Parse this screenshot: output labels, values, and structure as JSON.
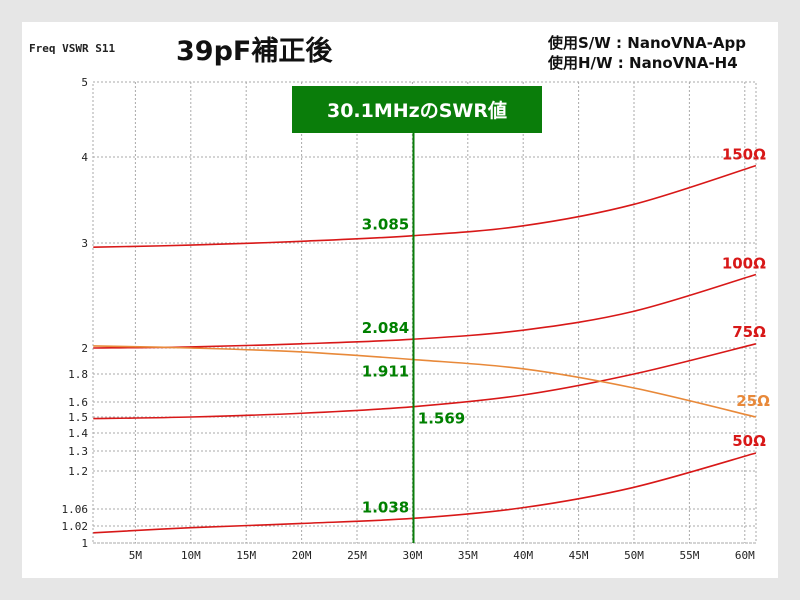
{
  "header": {
    "axis_caption": "Freq VSWR S11",
    "title": "39pF補正後",
    "software": "使用S/W : NanoVNA-App",
    "hardware": "使用H/W : NanoVNA-H4"
  },
  "banner": {
    "label": "30.1MHzのSWR値",
    "color": "#0a7d0a"
  },
  "chart_data": {
    "type": "line",
    "title": "39pF補正後",
    "xlabel": "Freq",
    "ylabel": "VSWR S11",
    "xlim": [
      1.2,
      61
    ],
    "ylim": [
      1,
      5
    ],
    "grid": true,
    "x_ticks": [
      5,
      10,
      15,
      20,
      25,
      30,
      35,
      40,
      45,
      50,
      55,
      60
    ],
    "x_tick_labels": [
      "5M",
      "10M",
      "15M",
      "20M",
      "25M",
      "30M",
      "35M",
      "40M",
      "45M",
      "50M",
      "55M",
      "60M"
    ],
    "y_ticks": [
      1,
      1.02,
      1.06,
      1.2,
      1.3,
      1.4,
      1.5,
      1.6,
      1.8,
      2,
      3,
      4,
      5
    ],
    "y_tick_labels": [
      "1",
      "1.02",
      "1.06",
      "1.2",
      "1.3",
      "1.4",
      "1.5",
      "1.6",
      "1.8",
      "2",
      "3",
      "4",
      "5"
    ],
    "x": [
      1.2,
      10,
      20,
      30.1,
      40,
      50,
      61
    ],
    "series": [
      {
        "name": "150Ω",
        "color": "#d81818",
        "values": [
          2.96,
          2.98,
          3.02,
          3.085,
          3.2,
          3.45,
          3.9
        ]
      },
      {
        "name": "100Ω",
        "color": "#d81818",
        "values": [
          2.0,
          2.01,
          2.04,
          2.084,
          2.17,
          2.35,
          2.7
        ]
      },
      {
        "name": "75Ω",
        "color": "#d81818",
        "values": [
          1.49,
          1.5,
          1.525,
          1.569,
          1.65,
          1.8,
          2.04
        ]
      },
      {
        "name": "25Ω",
        "color": "#e8893a",
        "values": [
          2.02,
          2.0,
          1.97,
          1.911,
          1.84,
          1.7,
          1.5
        ]
      },
      {
        "name": "50Ω",
        "color": "#d81818",
        "values": [
          1.012,
          1.018,
          1.026,
          1.038,
          1.065,
          1.14,
          1.29
        ]
      }
    ],
    "marker": {
      "x": 30.1,
      "color": "#0a7d0a"
    },
    "annotations": [
      {
        "text": "3.085",
        "series": "150Ω"
      },
      {
        "text": "2.084",
        "series": "100Ω"
      },
      {
        "text": "1.911",
        "series": "25Ω"
      },
      {
        "text": "1.569",
        "series": "75Ω"
      },
      {
        "text": "1.038",
        "series": "50Ω"
      }
    ]
  }
}
